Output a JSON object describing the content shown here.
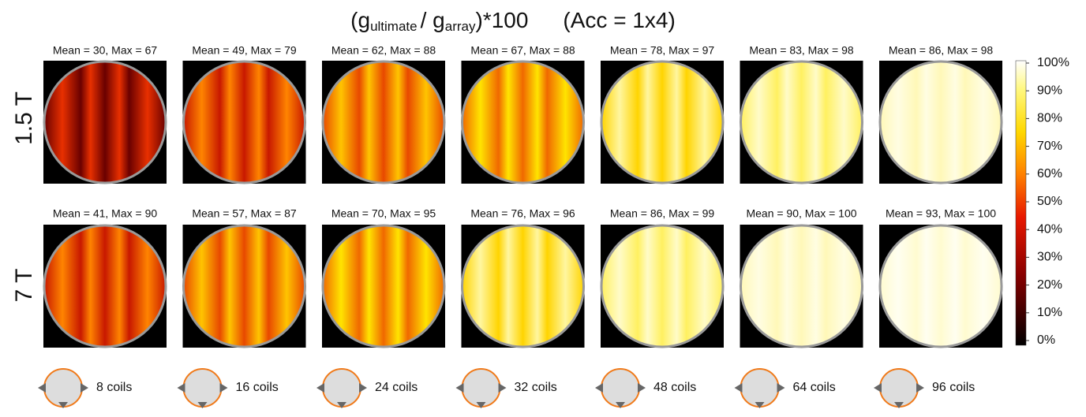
{
  "title": {
    "open": "(g",
    "sub1": "ultimate",
    "mid": "/ g",
    "sub2": "array",
    "close": ")*100",
    "acc": "(Acc = 1x4)"
  },
  "rows": [
    {
      "label": "1.5 T",
      "panels": [
        "Mean = 30, Max = 67",
        "Mean = 49, Max = 79",
        "Mean = 62,  Max = 88",
        "Mean = 67,  Max = 88",
        "Mean = 78,  Max = 97",
        "Mean = 83,  Max = 98",
        "Mean = 86,  Max = 98"
      ]
    },
    {
      "label": "7 T",
      "panels": [
        "Mean = 41, Max = 90",
        "Mean = 57, Max = 87",
        "Mean = 70, Max = 95",
        "Mean = 76, Max = 96",
        "Mean = 86, Max = 99",
        "Mean = 90, Max = 100",
        "Mean = 93, Max = 100"
      ]
    }
  ],
  "coils": [
    "8 coils",
    "16 coils",
    "24 coils",
    "32 coils",
    "48 coils",
    "64 coils",
    "96 coils"
  ],
  "colorbar": {
    "ticks": [
      "100%",
      "90%",
      "80%",
      "70%",
      "60%",
      "50%",
      "40%",
      "30%",
      "20%",
      "10%",
      "0%"
    ]
  }
}
